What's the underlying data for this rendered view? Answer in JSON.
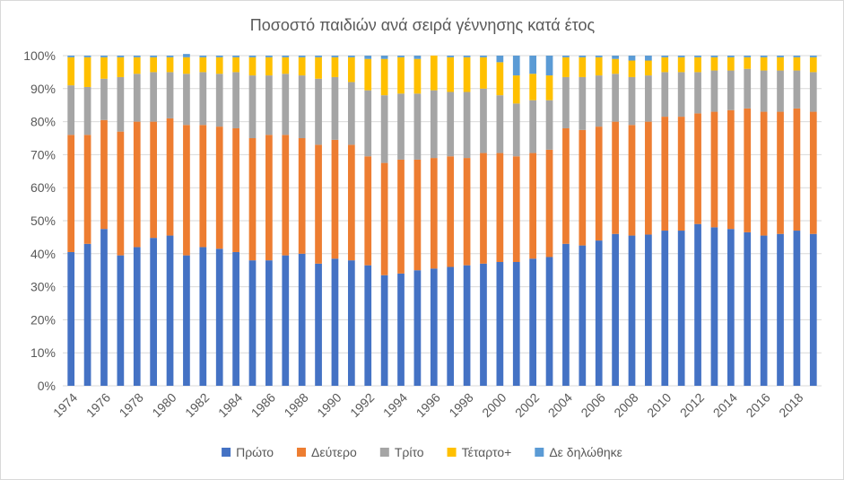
{
  "chart_data": {
    "type": "bar",
    "stacked": true,
    "percent": true,
    "title": "Ποσοστό παιδιών ανά σειρά γέννησης κατά έτος",
    "xlabel": "",
    "ylabel": "",
    "ylim": [
      0,
      100
    ],
    "yticks": [
      "0%",
      "10%",
      "20%",
      "30%",
      "40%",
      "50%",
      "60%",
      "70%",
      "80%",
      "90%",
      "100%"
    ],
    "grid": true,
    "legend_position": "bottom",
    "categories": [
      1974,
      1975,
      1976,
      1977,
      1978,
      1979,
      1980,
      1981,
      1982,
      1983,
      1984,
      1985,
      1986,
      1987,
      1988,
      1989,
      1990,
      1991,
      1992,
      1993,
      1994,
      1995,
      1996,
      1997,
      1998,
      1999,
      2000,
      2001,
      2002,
      2003,
      2004,
      2005,
      2006,
      2007,
      2008,
      2009,
      2010,
      2011,
      2012,
      2013,
      2014,
      2015,
      2016,
      2017,
      2018,
      2019
    ],
    "x_tick_labels": [
      "1974",
      "1976",
      "1978",
      "1980",
      "1982",
      "1984",
      "1986",
      "1988",
      "1990",
      "1992",
      "1994",
      "1996",
      "1998",
      "2000",
      "2002",
      "2004",
      "2006",
      "2008",
      "2010",
      "2012",
      "2014",
      "2016",
      "2018"
    ],
    "series": [
      {
        "name": "Πρώτο",
        "color": "#4472C4",
        "values": [
          40.5,
          43,
          47.5,
          39.5,
          42,
          44.8,
          45.5,
          39.5,
          42,
          41.5,
          40.5,
          38,
          38,
          39.5,
          40,
          37,
          38.5,
          38,
          36.5,
          33.5,
          34,
          35,
          35.5,
          36,
          36.5,
          37,
          37.5,
          37.5,
          38.5,
          39,
          43,
          42.5,
          44,
          46,
          45.5,
          45.8,
          47,
          47,
          49,
          48,
          47.5,
          46.5,
          45.5,
          46,
          47,
          46
        ]
      },
      {
        "name": "Δεύτερο",
        "color": "#ED7D31",
        "values": [
          35.5,
          33,
          33,
          37.5,
          38,
          35.2,
          35.5,
          39.5,
          37,
          37,
          37.5,
          37,
          38,
          36.5,
          35,
          36,
          36,
          35,
          33,
          34,
          34.5,
          33.5,
          33.5,
          33.5,
          32.5,
          33.5,
          33,
          32,
          32,
          32.5,
          35,
          35,
          34.5,
          34,
          33.5,
          34.2,
          34.5,
          34.5,
          33.5,
          35,
          36,
          37.5,
          37.5,
          37,
          37,
          37
        ]
      },
      {
        "name": "Τρίτο",
        "color": "#A5A5A5",
        "values": [
          15,
          14.5,
          12.5,
          16.5,
          14.5,
          15,
          14,
          15.5,
          16,
          16,
          17,
          19,
          18,
          18.5,
          19,
          20,
          19,
          19,
          20,
          20.5,
          20,
          20,
          20.5,
          19.5,
          20,
          19.5,
          17.5,
          16,
          16,
          15,
          15.5,
          16,
          15.5,
          14.5,
          14.5,
          14,
          13.5,
          13.5,
          12.5,
          12.5,
          12,
          12,
          12.5,
          12.5,
          11.5,
          12
        ]
      },
      {
        "name": "Τέταρτο+",
        "color": "#FFC000",
        "values": [
          8.5,
          9,
          6.5,
          6,
          5,
          4.5,
          4.5,
          5,
          4.5,
          5,
          4.5,
          5.5,
          5.5,
          5,
          5.5,
          6.5,
          6,
          7.5,
          9.5,
          11,
          11,
          10.5,
          10.5,
          10.5,
          10.5,
          9.5,
          10,
          8.5,
          8,
          7.5,
          6,
          6,
          5.5,
          4.5,
          5,
          4.5,
          4.5,
          4.5,
          4.5,
          4,
          4,
          3.5,
          4,
          4,
          4,
          4.5
        ]
      },
      {
        "name": "Δε δηλώθηκε",
        "color": "#5B9BD5",
        "values": [
          0.5,
          0.5,
          0.5,
          0.5,
          0.5,
          0.5,
          0.5,
          1,
          0.5,
          0.5,
          0.5,
          0.5,
          0.5,
          0.5,
          0.5,
          0.5,
          0.5,
          0.5,
          1,
          1,
          0.5,
          1,
          0,
          0.5,
          0.5,
          0.5,
          2,
          6,
          5.5,
          6,
          0.5,
          0.5,
          0.5,
          1,
          1.5,
          1.5,
          0.5,
          0.5,
          0.5,
          0.5,
          0.5,
          0.5,
          0.5,
          0.5,
          0.5,
          0.5
        ]
      }
    ]
  }
}
